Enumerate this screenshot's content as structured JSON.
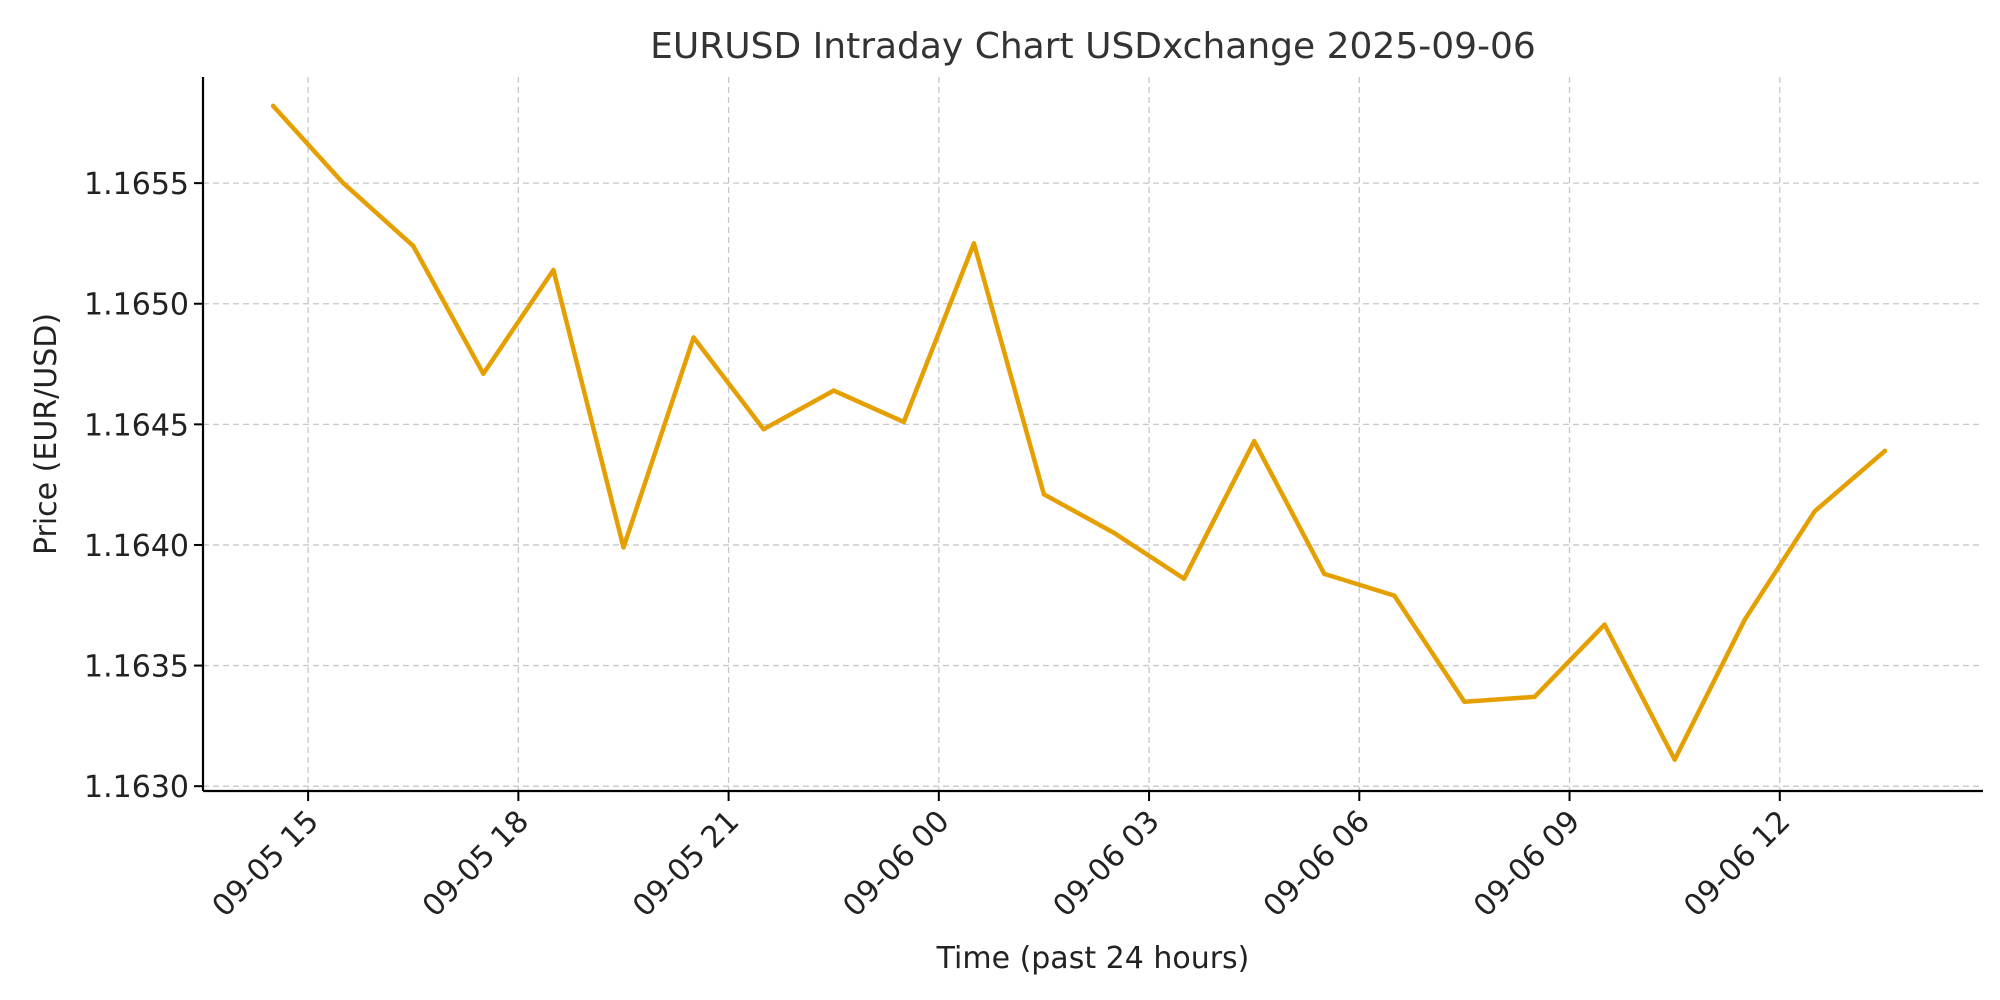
{
  "chart_data": {
    "type": "line",
    "title": "EURUSD Intraday Chart USDxchange 2025-09-06",
    "xlabel": "Time (past 24 hours)",
    "ylabel": "Price (EUR/USD)",
    "x_ticks": [
      {
        "time": "2025-09-05 15:00",
        "label": "09-05 15"
      },
      {
        "time": "2025-09-05 18:00",
        "label": "09-05 18"
      },
      {
        "time": "2025-09-05 21:00",
        "label": "09-05 21"
      },
      {
        "time": "2025-09-06 00:00",
        "label": "09-06 00"
      },
      {
        "time": "2025-09-06 03:00",
        "label": "09-06 03"
      },
      {
        "time": "2025-09-06 06:00",
        "label": "09-06 06"
      },
      {
        "time": "2025-09-06 09:00",
        "label": "09-06 09"
      },
      {
        "time": "2025-09-06 12:00",
        "label": "09-06 12"
      }
    ],
    "y_ticks": [
      {
        "value": 1.163,
        "label": "1.1630"
      },
      {
        "value": 1.1635,
        "label": "1.1635"
      },
      {
        "value": 1.164,
        "label": "1.1640"
      },
      {
        "value": 1.1645,
        "label": "1.1645"
      },
      {
        "value": 1.165,
        "label": "1.1650"
      },
      {
        "value": 1.1655,
        "label": "1.1655"
      }
    ],
    "xlim": [
      "2025-09-05 13:30",
      "2025-09-06 14:54"
    ],
    "ylim": [
      1.16298,
      1.16594
    ],
    "grid": true,
    "series": [
      {
        "color": "#e69f00",
        "x": [
          "2025-09-05 14:30",
          "2025-09-05 15:30",
          "2025-09-05 16:30",
          "2025-09-05 17:30",
          "2025-09-05 18:30",
          "2025-09-05 19:30",
          "2025-09-05 20:30",
          "2025-09-05 21:30",
          "2025-09-05 22:30",
          "2025-09-05 23:30",
          "2025-09-06 00:30",
          "2025-09-06 01:30",
          "2025-09-06 02:30",
          "2025-09-06 03:30",
          "2025-09-06 04:30",
          "2025-09-06 05:30",
          "2025-09-06 06:30",
          "2025-09-06 07:30",
          "2025-09-06 08:30",
          "2025-09-06 09:30",
          "2025-09-06 10:30",
          "2025-09-06 11:30",
          "2025-09-06 12:30",
          "2025-09-06 13:30"
        ],
        "y": [
          1.16582,
          1.1655,
          1.16524,
          1.16471,
          1.16514,
          1.16399,
          1.16486,
          1.16448,
          1.16464,
          1.16451,
          1.16525,
          1.16421,
          1.16405,
          1.16386,
          1.16443,
          1.16388,
          1.16379,
          1.16335,
          1.16337,
          1.16367,
          1.16311,
          1.16369,
          1.16414,
          1.16439
        ]
      }
    ]
  }
}
